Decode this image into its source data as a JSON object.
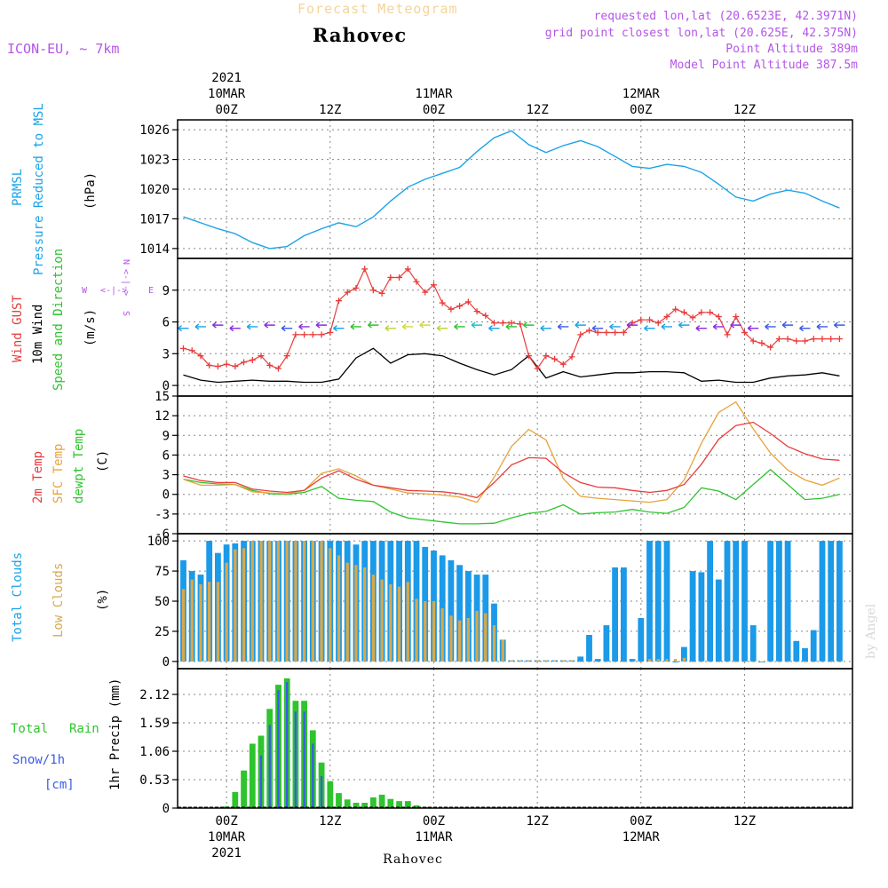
{
  "header": {
    "subtitle": "Forecast Meteogram",
    "location": "Rahovec",
    "model": "ICON-EU, ~ 7km",
    "requested": "requested lon,lat (20.6523E, 42.3971N)",
    "grid_point": "grid point closest lon,lat (20.625E, 42.375N)",
    "point_altitude": "Point Altitude 389m",
    "model_altitude": "Model Point Altitude 387.5m"
  },
  "footer": {
    "location": "Rahovec"
  },
  "watermark": "by Angel",
  "time_axis": {
    "ticks": [
      {
        "h": 0,
        "label": "00Z",
        "date": "10MAR",
        "year": "2021"
      },
      {
        "h": 12,
        "label": "12Z",
        "date": "",
        "year": ""
      },
      {
        "h": 24,
        "label": "00Z",
        "date": "11MAR",
        "year": ""
      },
      {
        "h": 36,
        "label": "12Z",
        "date": "",
        "year": ""
      },
      {
        "h": 48,
        "label": "00Z",
        "date": "12MAR",
        "year": ""
      },
      {
        "h": 60,
        "label": "12Z",
        "date": "",
        "year": ""
      }
    ]
  },
  "colors": {
    "pressure": "#1aa3e8",
    "gust": "#e83c3c",
    "wind": "#000000",
    "temp2m": "#e83c3c",
    "sfc": "#e8a33c",
    "dewpt": "#2ec42e",
    "total_cloud": "#1a9ae8",
    "low_cloud": "#d9a84a",
    "rain": "#2ec42e",
    "snow": "#3c5ae8",
    "purple": "#b455e6"
  },
  "labels": {
    "pressure": [
      "PRMSL",
      "Pressure Reduced to MSL",
      "(hPa)"
    ],
    "wind": [
      "Wind GUST",
      "10m Wind",
      "Speed and Direction",
      "(m/s)"
    ],
    "temp": [
      "2m Temp",
      "SFC Temp",
      "dewpt Temp",
      "(C)"
    ],
    "cloud": [
      "Total Clouds",
      "Low Clouds",
      "(%)"
    ],
    "precip": [
      "Total",
      "Rain",
      "Snow/1h",
      "[cm]",
      "1hr Precip (mm)"
    ],
    "compass": [
      "W",
      "E",
      "N",
      "S"
    ]
  },
  "chart_data": [
    {
      "type": "line",
      "name": "pressure",
      "yticks": [
        "1014",
        "1017",
        "1020",
        "1023",
        "1026"
      ],
      "ylim": [
        1013,
        1027
      ],
      "x": [
        -5,
        -3,
        -1,
        1,
        3,
        5,
        7,
        9,
        11,
        13,
        15,
        17,
        19,
        21,
        23,
        25,
        27,
        29,
        31,
        33,
        35,
        37,
        39,
        41,
        43,
        45,
        47,
        49,
        51,
        53,
        55,
        57,
        59,
        61,
        63,
        65,
        67,
        69,
        71
      ],
      "values": [
        1017.2,
        1016.6,
        1016.0,
        1015.5,
        1014.6,
        1014.0,
        1014.2,
        1015.3,
        1016.0,
        1016.6,
        1016.2,
        1017.2,
        1018.8,
        1020.2,
        1021.0,
        1021.6,
        1022.2,
        1023.8,
        1025.2,
        1025.9,
        1024.5,
        1023.7,
        1024.4,
        1024.9,
        1024.3,
        1023.3,
        1022.3,
        1022.1,
        1022.5,
        1022.3,
        1021.7,
        1020.5,
        1019.2,
        1018.8,
        1019.5,
        1019.9,
        1019.6,
        1018.8,
        1018.1
      ]
    },
    {
      "type": "line",
      "name": "wind",
      "yticks": [
        "0",
        "3",
        "6",
        "9"
      ],
      "ylim": [
        -1,
        12
      ],
      "gust_x": [
        -5,
        -4,
        -3,
        -2,
        -1,
        0,
        1,
        2,
        3,
        4,
        5,
        6,
        7,
        8,
        9,
        10,
        11,
        12,
        13,
        14,
        15,
        16,
        17,
        18,
        19,
        20,
        21,
        22,
        23,
        24,
        25,
        26,
        27,
        28,
        29,
        30,
        31,
        32,
        33,
        34,
        35,
        36,
        37,
        38,
        39,
        40,
        41,
        42,
        43,
        44,
        45,
        46,
        47,
        48,
        49,
        50,
        51,
        52,
        53,
        54,
        55,
        56,
        57,
        58,
        59,
        60,
        61,
        62,
        63,
        64,
        65,
        66,
        67,
        68,
        69,
        70,
        71
      ],
      "gust": [
        3.5,
        3.3,
        2.8,
        1.9,
        1.8,
        2.0,
        1.8,
        2.2,
        2.4,
        2.8,
        1.9,
        1.6,
        2.8,
        4.8,
        4.8,
        4.8,
        4.8,
        5.0,
        8.0,
        8.8,
        9.2,
        11.0,
        9.0,
        8.7,
        10.2,
        10.2,
        11.0,
        9.8,
        8.8,
        9.5,
        7.8,
        7.2,
        7.5,
        7.9,
        7.0,
        6.6,
        5.9,
        5.9,
        5.9,
        5.8,
        2.8,
        1.6,
        2.8,
        2.5,
        2.0,
        2.7,
        4.8,
        5.2,
        5.0,
        5.0,
        5.0,
        5.0,
        5.9,
        6.2,
        6.2,
        5.9,
        6.5,
        7.2,
        6.9,
        6.4,
        6.9,
        6.9,
        6.5,
        4.8,
        6.5,
        5.0,
        4.2,
        4.0,
        3.6,
        4.4,
        4.4,
        4.2,
        4.2,
        4.4,
        4.4,
        4.4,
        4.4
      ],
      "wind_x": [
        -5,
        -3,
        -1,
        1,
        3,
        5,
        7,
        9,
        11,
        13,
        15,
        17,
        19,
        21,
        23,
        25,
        27,
        29,
        31,
        33,
        35,
        37,
        39,
        41,
        43,
        45,
        47,
        49,
        51,
        53,
        55,
        57,
        59,
        61,
        63,
        65,
        67,
        69,
        71
      ],
      "wind": [
        1.0,
        0.5,
        0.3,
        0.4,
        0.5,
        0.4,
        0.4,
        0.3,
        0.3,
        0.6,
        2.6,
        3.5,
        2.1,
        2.9,
        3.0,
        2.8,
        2.1,
        1.5,
        1.0,
        1.5,
        2.8,
        0.7,
        1.3,
        0.8,
        1.0,
        1.2,
        1.2,
        1.3,
        1.3,
        1.2,
        0.4,
        0.5,
        0.3,
        0.3,
        0.7,
        0.9,
        1.0,
        1.2,
        0.9
      ]
    },
    {
      "type": "line",
      "name": "temperature",
      "yticks": [
        "15",
        "12",
        "9",
        "6",
        "3",
        "0",
        "-3",
        "-6"
      ],
      "ylim": [
        -6,
        15
      ],
      "x": [
        -5,
        -3,
        -1,
        1,
        3,
        5,
        7,
        9,
        11,
        13,
        15,
        17,
        19,
        21,
        23,
        25,
        27,
        29,
        31,
        33,
        35,
        37,
        39,
        41,
        43,
        45,
        47,
        49,
        51,
        53,
        55,
        57,
        59,
        61,
        63,
        65,
        67,
        69,
        71
      ],
      "temp2m": [
        2.8,
        2.1,
        1.8,
        1.8,
        0.8,
        0.5,
        0.3,
        0.6,
        2.5,
        3.6,
        2.3,
        1.4,
        1.0,
        0.6,
        0.5,
        0.4,
        0.1,
        -0.5,
        1.8,
        4.5,
        5.6,
        5.5,
        3.3,
        1.8,
        1.1,
        1.0,
        0.6,
        0.3,
        0.6,
        1.5,
        4.6,
        8.4,
        10.5,
        11.0,
        9.3,
        7.3,
        6.2,
        5.4,
        5.2
      ],
      "sfc": [
        2.3,
        1.4,
        1.4,
        1.5,
        0.4,
        0.2,
        0.1,
        0.6,
        3.2,
        3.9,
        2.8,
        1.4,
        0.8,
        0.2,
        0.1,
        -0.1,
        -0.4,
        -1.2,
        2.6,
        7.3,
        9.9,
        8.3,
        2.4,
        -0.3,
        -0.6,
        -0.8,
        -1.0,
        -1.2,
        -0.8,
        2.2,
        7.8,
        12.5,
        14.1,
        10.0,
        6.3,
        3.7,
        2.2,
        1.4,
        2.5
      ],
      "dewpt": [
        2.3,
        1.8,
        1.6,
        1.5,
        0.6,
        0.1,
        0.0,
        0.3,
        1.2,
        -0.6,
        -0.9,
        -1.1,
        -2.7,
        -3.6,
        -3.9,
        -4.2,
        -4.5,
        -4.5,
        -4.4,
        -3.6,
        -2.9,
        -2.6,
        -1.6,
        -3.0,
        -2.8,
        -2.7,
        -2.3,
        -2.7,
        -2.9,
        -2.0,
        1.0,
        0.5,
        -0.8,
        1.5,
        3.8,
        1.5,
        -0.8,
        -0.6,
        0.0
      ]
    },
    {
      "type": "bar",
      "name": "clouds",
      "yticks": [
        "0",
        "25",
        "50",
        "75",
        "100"
      ],
      "ylim": [
        -6,
        106
      ],
      "x": [
        -5,
        -4,
        -3,
        -2,
        -1,
        0,
        1,
        2,
        3,
        4,
        5,
        6,
        7,
        8,
        9,
        10,
        11,
        12,
        13,
        14,
        15,
        16,
        17,
        18,
        19,
        20,
        21,
        22,
        23,
        24,
        25,
        26,
        27,
        28,
        29,
        30,
        31,
        32,
        33,
        34,
        35,
        36,
        37,
        38,
        39,
        40,
        41,
        42,
        43,
        44,
        45,
        46,
        47,
        48,
        49,
        50,
        51,
        52,
        53,
        54,
        55,
        56,
        57,
        58,
        59,
        60,
        61,
        62,
        63,
        64,
        65,
        66,
        67,
        68,
        69,
        70,
        71
      ],
      "total": [
        84,
        75,
        72,
        100,
        90,
        97,
        98,
        100,
        100,
        100,
        100,
        100,
        100,
        100,
        100,
        100,
        100,
        100,
        100,
        100,
        97,
        100,
        100,
        100,
        100,
        100,
        100,
        100,
        95,
        92,
        88,
        84,
        80,
        75,
        72,
        72,
        48,
        18,
        1,
        1,
        1,
        1,
        1,
        1,
        1,
        1,
        4,
        22,
        2,
        30,
        78,
        78,
        2,
        36,
        100,
        100,
        100,
        0,
        12,
        75,
        74,
        100,
        68,
        100,
        100,
        100,
        30,
        0,
        100,
        100,
        100,
        17,
        11,
        26,
        100,
        100,
        100
      ],
      "low": [
        60,
        68,
        64,
        66,
        66,
        82,
        93,
        94,
        100,
        100,
        100,
        100,
        100,
        100,
        100,
        100,
        100,
        94,
        88,
        82,
        80,
        78,
        72,
        68,
        64,
        62,
        66,
        52,
        50,
        50,
        44,
        38,
        34,
        36,
        42,
        40,
        30,
        18,
        1,
        1,
        1,
        1,
        1,
        1,
        1,
        1,
        0,
        0,
        0,
        0,
        0,
        0,
        0,
        0,
        2,
        2,
        2,
        2,
        3,
        0,
        0,
        0,
        0,
        0,
        0,
        0,
        0,
        0,
        0,
        0,
        0,
        0,
        0,
        0,
        0,
        0,
        0
      ]
    },
    {
      "type": "bar",
      "name": "precipitation",
      "yticks": [
        "0",
        "0.53",
        "1.06",
        "1.59",
        "2.12"
      ],
      "ylim": [
        0,
        2.6
      ],
      "x": [
        -5,
        -4,
        -3,
        -2,
        -1,
        0,
        1,
        2,
        3,
        4,
        5,
        6,
        7,
        8,
        9,
        10,
        11,
        12,
        13,
        14,
        15,
        16,
        17,
        18,
        19,
        20,
        21,
        22,
        23,
        24
      ],
      "rain": [
        0,
        0,
        0,
        0,
        0.01,
        0.03,
        0.3,
        0.7,
        1.2,
        1.35,
        1.85,
        2.3,
        2.42,
        2.0,
        2.0,
        1.45,
        0.85,
        0.5,
        0.28,
        0.16,
        0.1,
        0.1,
        0.2,
        0.25,
        0.17,
        0.13,
        0.13,
        0.05,
        0.02,
        0.01
      ],
      "snow": [
        0,
        0,
        0,
        0,
        0,
        0,
        0,
        0,
        0,
        0.98,
        1.55,
        2.2,
        2.35,
        1.8,
        1.8,
        1.2,
        0.6,
        0,
        0,
        0,
        0,
        0,
        0,
        0,
        0,
        0,
        0,
        0,
        0,
        0
      ]
    }
  ]
}
